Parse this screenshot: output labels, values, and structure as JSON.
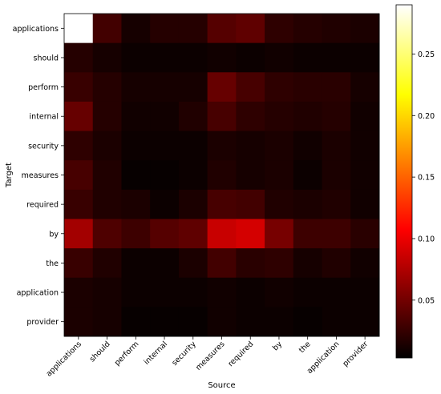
{
  "chart_data": {
    "type": "heatmap",
    "xlabel": "Source",
    "ylabel": "Target",
    "x_categories": [
      "applications",
      "should",
      "perform",
      "internal",
      "security",
      "measures",
      "required",
      "by",
      "the",
      "application",
      "provider"
    ],
    "y_categories": [
      "applications",
      "should",
      "perform",
      "internal",
      "security",
      "measures",
      "required",
      "by",
      "the",
      "application",
      "provider"
    ],
    "values": [
      [
        0.29,
        0.03,
        0.012,
        0.018,
        0.018,
        0.038,
        0.042,
        0.022,
        0.018,
        0.016,
        0.014
      ],
      [
        0.018,
        0.012,
        0.008,
        0.008,
        0.008,
        0.01,
        0.008,
        0.01,
        0.008,
        0.008,
        0.008
      ],
      [
        0.026,
        0.018,
        0.012,
        0.012,
        0.012,
        0.045,
        0.032,
        0.022,
        0.02,
        0.02,
        0.012
      ],
      [
        0.045,
        0.018,
        0.01,
        0.01,
        0.016,
        0.032,
        0.022,
        0.018,
        0.016,
        0.018,
        0.01
      ],
      [
        0.022,
        0.014,
        0.008,
        0.008,
        0.008,
        0.014,
        0.012,
        0.014,
        0.01,
        0.014,
        0.01
      ],
      [
        0.032,
        0.016,
        0.006,
        0.006,
        0.008,
        0.016,
        0.012,
        0.014,
        0.008,
        0.014,
        0.01
      ],
      [
        0.026,
        0.016,
        0.014,
        0.008,
        0.014,
        0.032,
        0.03,
        0.016,
        0.014,
        0.016,
        0.01
      ],
      [
        0.07,
        0.035,
        0.028,
        0.038,
        0.042,
        0.085,
        0.09,
        0.052,
        0.028,
        0.028,
        0.02
      ],
      [
        0.026,
        0.016,
        0.008,
        0.008,
        0.014,
        0.03,
        0.02,
        0.022,
        0.012,
        0.016,
        0.01
      ],
      [
        0.014,
        0.012,
        0.008,
        0.008,
        0.008,
        0.01,
        0.008,
        0.01,
        0.008,
        0.008,
        0.008
      ],
      [
        0.014,
        0.012,
        0.006,
        0.006,
        0.006,
        0.01,
        0.008,
        0.008,
        0.006,
        0.008,
        0.008
      ]
    ],
    "colormap": "hot",
    "colorbar": {
      "min": 0.003,
      "max": 0.29,
      "ticks": [
        0.05,
        0.1,
        0.15,
        0.2,
        0.25
      ],
      "tick_labels": [
        "0.05",
        "0.10",
        "0.15",
        "0.20",
        "0.25"
      ]
    },
    "grid": false
  }
}
